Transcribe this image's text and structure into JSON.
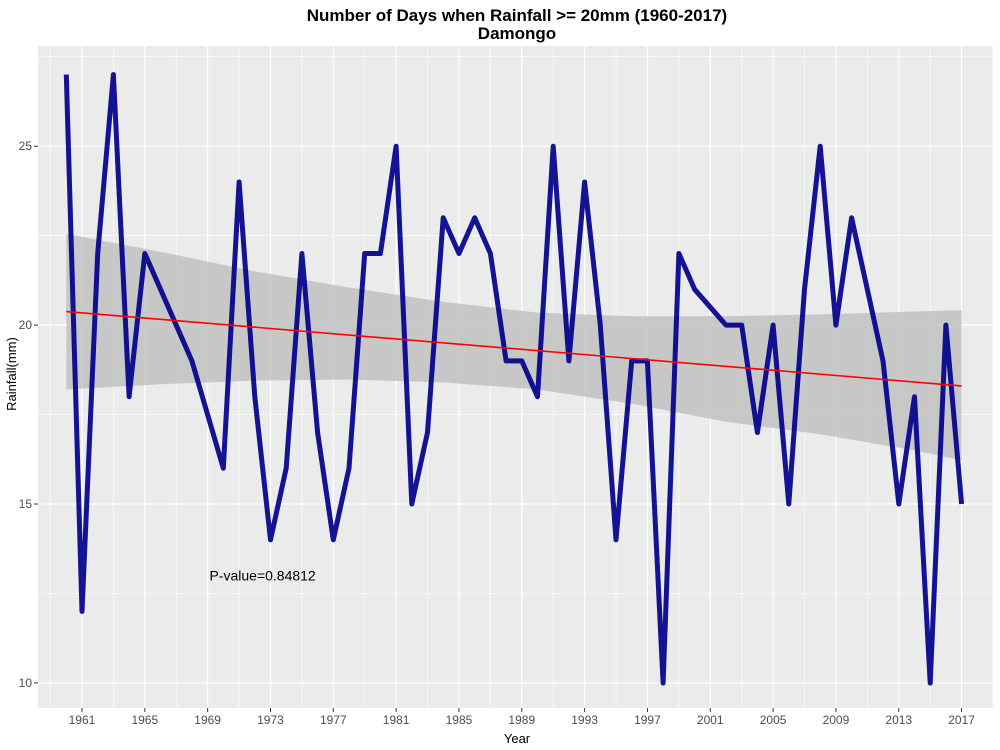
{
  "chart_data": {
    "type": "line",
    "title": "Number of Days when Rainfall >= 20mm (1960-2017)",
    "subtitle": "Damongo",
    "xlabel": "Year",
    "ylabel": "Rainfall(mm)",
    "xlim": [
      1958.2,
      2019.0
    ],
    "ylim": [
      9.3,
      27.8
    ],
    "x_ticks": [
      1961,
      1965,
      1969,
      1973,
      1977,
      1981,
      1985,
      1989,
      1993,
      1997,
      2001,
      2005,
      2009,
      2013,
      2017
    ],
    "y_ticks": [
      10,
      15,
      20,
      25
    ],
    "grid": true,
    "series": [
      {
        "color": "#00008B",
        "x": [
          1960,
          1961,
          1962,
          1963,
          1964,
          1965,
          1966,
          1967,
          1968,
          1969,
          1970,
          1971,
          1972,
          1973,
          1974,
          1975,
          1976,
          1977,
          1978,
          1979,
          1980,
          1981,
          1982,
          1983,
          1984,
          1985,
          1986,
          1987,
          1988,
          1989,
          1990,
          1991,
          1992,
          1993,
          1994,
          1995,
          1996,
          1997,
          1998,
          1999,
          2000,
          2001,
          2002,
          2003,
          2004,
          2005,
          2006,
          2007,
          2008,
          2009,
          2010,
          2011,
          2012,
          2013,
          2014,
          2015,
          2016,
          2017
        ],
        "values": [
          27,
          12,
          22,
          27,
          18,
          22,
          21,
          20,
          19,
          17.5,
          16,
          24,
          18,
          14,
          16,
          22,
          17,
          14,
          16,
          22,
          22,
          25,
          15,
          17,
          23,
          22,
          23,
          22,
          19,
          19,
          18,
          25,
          19,
          24,
          20,
          14,
          19,
          19,
          10,
          22,
          21,
          20.5,
          20,
          20,
          17,
          20,
          15,
          21,
          25,
          20,
          23,
          21,
          19,
          15,
          18,
          10,
          20,
          15
        ]
      }
    ],
    "trend": {
      "color": "#FF0000",
      "x": [
        1960,
        2017
      ],
      "values": [
        20.38,
        18.3
      ],
      "band_x": [
        1960,
        1966,
        1972,
        1978,
        1984,
        1990,
        1996,
        2002,
        2008,
        2014,
        2017
      ],
      "band_upper": [
        22.55,
        22.05,
        21.5,
        21.05,
        20.65,
        20.35,
        20.25,
        20.25,
        20.3,
        20.38,
        20.42
      ],
      "band_lower": [
        18.2,
        18.35,
        18.45,
        18.48,
        18.4,
        18.2,
        17.8,
        17.3,
        16.95,
        16.5,
        16.22
      ],
      "band_color": "#BEBEBE"
    },
    "annotations": [
      {
        "text": "P-value=0.84812",
        "x": 1972.5,
        "y": 13.0
      }
    ],
    "panel_background": "#EBEBEB",
    "grid_color": "#FFFFFF"
  }
}
